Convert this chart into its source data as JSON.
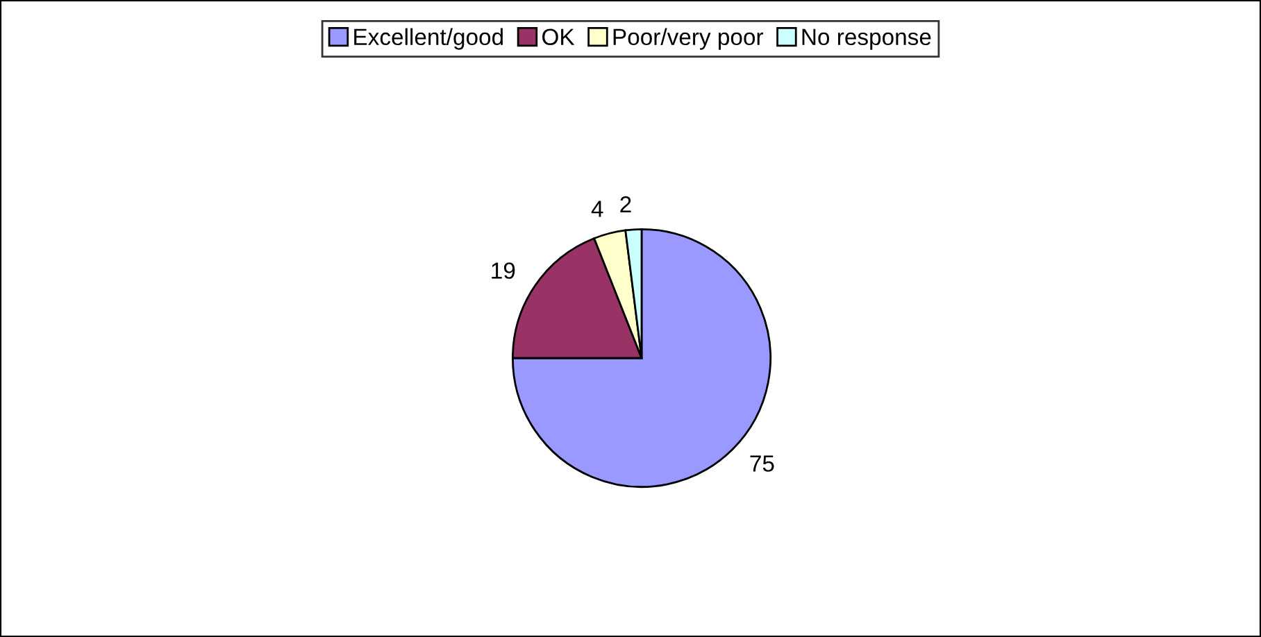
{
  "chart_data": {
    "type": "pie",
    "categories": [
      "Excellent/good",
      "OK",
      "Poor/very poor",
      "No response"
    ],
    "values": [
      75,
      19,
      4,
      2
    ],
    "colors": [
      "#9999ff",
      "#993366",
      "#ffffcc",
      "#ccffff"
    ],
    "data_labels": true,
    "legend": "top"
  }
}
